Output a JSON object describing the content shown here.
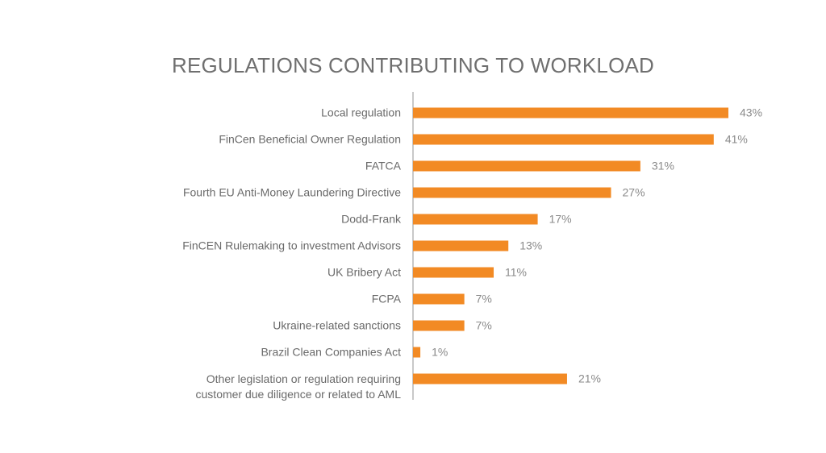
{
  "chart_data": {
    "type": "bar",
    "orientation": "horizontal",
    "title": "REGULATIONS CONTRIBUTING TO WORKLOAD",
    "categories": [
      "Local regulation",
      "FinCen Beneficial Owner Regulation",
      "FATCA",
      "Fourth EU Anti-Money Laundering Directive",
      "Dodd-Frank",
      "FinCEN Rulemaking to investment Advisors",
      "UK Bribery Act",
      "FCPA",
      "Ukraine-related sanctions",
      "Brazil Clean Companies Act",
      "Other legislation or regulation requiring customer due diligence or related to AML"
    ],
    "values": [
      43,
      41,
      31,
      27,
      17,
      13,
      11,
      7,
      7,
      1,
      21
    ],
    "value_labels": [
      "43%",
      "41%",
      "31%",
      "27%",
      "17%",
      "13%",
      "11%",
      "7%",
      "7%",
      "1%",
      "21%"
    ],
    "color": "#f28a24"
  }
}
